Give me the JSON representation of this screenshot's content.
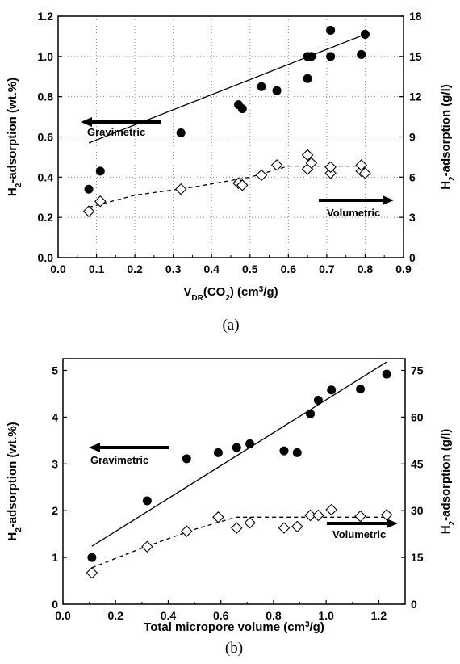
{
  "chart_data": [
    {
      "type": "scatter",
      "panel_label": "(a)",
      "xlabel": {
        "main": "V",
        "sub": "DR",
        "mid": "(CO",
        "sub2": "2",
        "tail": ") (cm",
        "sup": "3",
        "end": "/g)"
      },
      "ylabel_left": {
        "main": "H",
        "sub": "2",
        "tail": "-adsorption (wt.%)"
      },
      "ylabel_right": {
        "main": "H",
        "sub": "2",
        "tail": "-adsorption (g/l)"
      },
      "xlim": [
        0.0,
        0.9
      ],
      "ylim_left": [
        0.0,
        1.2
      ],
      "ylim_right": [
        0,
        18
      ],
      "xticks": [
        "0.0",
        "0.1",
        "0.2",
        "0.3",
        "0.4",
        "0.5",
        "0.6",
        "0.7",
        "0.8",
        "0.9"
      ],
      "yticks_left": [
        "0.0",
        "0.2",
        "0.4",
        "0.6",
        "0.8",
        "1.0",
        "1.2"
      ],
      "yticks_right": [
        "0",
        "3",
        "6",
        "9",
        "12",
        "15",
        "18"
      ],
      "grid": "dotted",
      "annotations": [
        "Gravimetric",
        "Volumetric"
      ],
      "series": [
        {
          "axis": "left",
          "marker": "filled-circle",
          "points": [
            [
              0.08,
              0.34
            ],
            [
              0.11,
              0.43
            ],
            [
              0.32,
              0.62
            ],
            [
              0.47,
              0.76
            ],
            [
              0.48,
              0.74
            ],
            [
              0.53,
              0.85
            ],
            [
              0.57,
              0.83
            ],
            [
              0.65,
              0.89
            ],
            [
              0.65,
              1.0
            ],
            [
              0.66,
              1.0
            ],
            [
              0.71,
              1.13
            ],
            [
              0.71,
              1.0
            ],
            [
              0.79,
              1.01
            ],
            [
              0.8,
              1.11
            ]
          ]
        },
        {
          "axis": "left",
          "marker": "open-diamond",
          "points": [
            [
              0.08,
              0.23
            ],
            [
              0.11,
              0.28
            ],
            [
              0.32,
              0.34
            ],
            [
              0.47,
              0.37
            ],
            [
              0.48,
              0.36
            ],
            [
              0.53,
              0.41
            ],
            [
              0.57,
              0.46
            ],
            [
              0.65,
              0.44
            ],
            [
              0.65,
              0.51
            ],
            [
              0.66,
              0.47
            ],
            [
              0.71,
              0.42
            ],
            [
              0.71,
              0.45
            ],
            [
              0.79,
              0.43
            ],
            [
              0.79,
              0.46
            ],
            [
              0.8,
              0.42
            ]
          ]
        }
      ],
      "fit_solid": [
        [
          0.08,
          0.57
        ],
        [
          0.8,
          1.11
        ]
      ],
      "fit_dashed": [
        [
          0.08,
          0.25
        ],
        [
          0.2,
          0.31
        ],
        [
          0.35,
          0.35
        ],
        [
          0.5,
          0.4
        ],
        [
          0.6,
          0.455
        ],
        [
          0.8,
          0.455
        ]
      ]
    },
    {
      "type": "scatter",
      "panel_label": "(b)",
      "xlabel": {
        "main": "Total micropore volume (cm",
        "sup": "3",
        "end": "/g)"
      },
      "ylabel_left": {
        "main": "H",
        "sub": "2",
        "tail": "-adsorption (wt.%)"
      },
      "ylabel_right": {
        "main": "H",
        "sub": "2",
        "tail": "-adsorption (g/l)"
      },
      "xlim": [
        0.0,
        1.3
      ],
      "ylim_left": [
        0,
        5.25
      ],
      "ylim_right": [
        0,
        78.75
      ],
      "xticks": [
        "0.0",
        "0.2",
        "0.4",
        "0.6",
        "0.8",
        "1.0",
        "1.2"
      ],
      "yticks_left": [
        "0",
        "1",
        "2",
        "3",
        "4",
        "5"
      ],
      "yticks_right": [
        "0",
        "15",
        "30",
        "45",
        "60",
        "75"
      ],
      "grid": "none",
      "annotations": [
        "Gravimetric",
        "Volumetric"
      ],
      "series": [
        {
          "axis": "left",
          "marker": "filled-circle",
          "points": [
            [
              0.11,
              1.0
            ],
            [
              0.32,
              2.21
            ],
            [
              0.47,
              3.11
            ],
            [
              0.59,
              3.24
            ],
            [
              0.66,
              3.35
            ],
            [
              0.71,
              3.43
            ],
            [
              0.84,
              3.28
            ],
            [
              0.89,
              3.24
            ],
            [
              0.94,
              4.07
            ],
            [
              0.97,
              4.36
            ],
            [
              1.02,
              4.58
            ],
            [
              1.13,
              4.6
            ],
            [
              1.23,
              4.92
            ]
          ]
        },
        {
          "axis": "left",
          "marker": "open-diamond",
          "points": [
            [
              0.11,
              0.67
            ],
            [
              0.32,
              1.23
            ],
            [
              0.47,
              1.56
            ],
            [
              0.59,
              1.86
            ],
            [
              0.66,
              1.63
            ],
            [
              0.71,
              1.74
            ],
            [
              0.84,
              1.63
            ],
            [
              0.89,
              1.66
            ],
            [
              0.94,
              1.9
            ],
            [
              0.97,
              1.9
            ],
            [
              1.02,
              2.02
            ],
            [
              1.13,
              1.88
            ],
            [
              1.23,
              1.91
            ]
          ]
        }
      ],
      "fit_solid": [
        [
          0.11,
          1.24
        ],
        [
          1.23,
          5.18
        ]
      ],
      "fit_dashed": [
        [
          0.11,
          0.78
        ],
        [
          0.3,
          1.2
        ],
        [
          0.5,
          1.6
        ],
        [
          0.62,
          1.8
        ],
        [
          0.66,
          1.86
        ],
        [
          1.23,
          1.86
        ]
      ]
    }
  ]
}
